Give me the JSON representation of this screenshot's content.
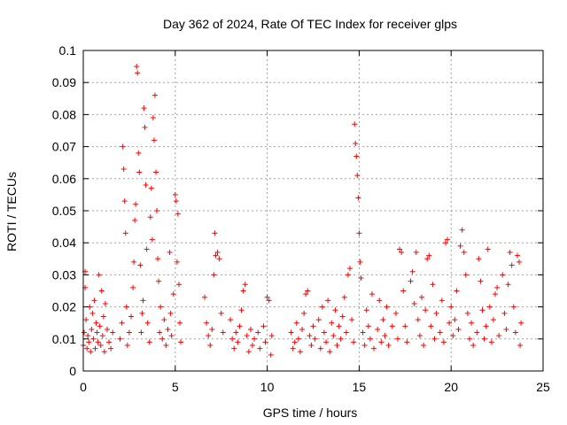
{
  "chart_data": {
    "type": "scatter",
    "title": "Day 362 of 2024, Rate Of TEC Index for receiver glps",
    "xlabel": "GPS time / hours",
    "ylabel": "ROTI / TECUs",
    "xlim": [
      0,
      25
    ],
    "ylim": [
      0,
      0.1
    ],
    "grid": true,
    "marker": "+",
    "marker_color": "#ff0000",
    "x_ticks": [
      0,
      5,
      10,
      15,
      20,
      25
    ],
    "x_tick_labels": [
      "0",
      "5",
      "10",
      "15",
      "20",
      "25"
    ],
    "y_ticks": [
      0,
      0.01,
      0.02,
      0.03,
      0.04,
      0.05,
      0.06,
      0.07,
      0.08,
      0.09,
      0.1
    ],
    "y_tick_labels": [
      "0",
      "0.01",
      "0.02",
      "0.03",
      "0.04",
      "0.05",
      "0.06",
      "0.07",
      "0.08",
      "0.09",
      "0.1"
    ],
    "series": [
      {
        "name": "ROTI",
        "points": [
          [
            0.0,
            0.008
          ],
          [
            0.05,
            0.012
          ],
          [
            0.1,
            0.031
          ],
          [
            0.1,
            0.026
          ],
          [
            0.15,
            0.016
          ],
          [
            0.2,
            0.007
          ],
          [
            0.25,
            0.011
          ],
          [
            0.3,
            0.009
          ],
          [
            0.35,
            0.02
          ],
          [
            0.4,
            0.006
          ],
          [
            0.45,
            0.013
          ],
          [
            0.5,
            0.018
          ],
          [
            0.55,
            0.01
          ],
          [
            0.6,
            0.022
          ],
          [
            0.65,
            0.007
          ],
          [
            0.7,
            0.015
          ],
          [
            0.75,
            0.012
          ],
          [
            0.8,
            0.009
          ],
          [
            0.85,
            0.03
          ],
          [
            0.9,
            0.014
          ],
          [
            0.95,
            0.008
          ],
          [
            1.0,
            0.025
          ],
          [
            1.05,
            0.011
          ],
          [
            1.1,
            0.017
          ],
          [
            1.15,
            0.006
          ],
          [
            1.2,
            0.021
          ],
          [
            1.3,
            0.013
          ],
          [
            1.4,
            0.009
          ],
          [
            1.5,
            0.007
          ],
          [
            1.6,
            0.012
          ],
          [
            2.0,
            0.01
          ],
          [
            2.1,
            0.015
          ],
          [
            2.15,
            0.07
          ],
          [
            2.2,
            0.063
          ],
          [
            2.25,
            0.053
          ],
          [
            2.3,
            0.043
          ],
          [
            2.35,
            0.02
          ],
          [
            2.4,
            0.008
          ],
          [
            2.5,
            0.012
          ],
          [
            2.6,
            0.017
          ],
          [
            2.7,
            0.026
          ],
          [
            2.75,
            0.034
          ],
          [
            2.8,
            0.047
          ],
          [
            2.85,
            0.052
          ],
          [
            2.9,
            0.095
          ],
          [
            2.95,
            0.093
          ],
          [
            3.0,
            0.068
          ],
          [
            3.05,
            0.062
          ],
          [
            3.1,
            0.033
          ],
          [
            3.15,
            0.012
          ],
          [
            3.2,
            0.018
          ],
          [
            3.25,
            0.022
          ],
          [
            3.3,
            0.082
          ],
          [
            3.35,
            0.076
          ],
          [
            3.4,
            0.058
          ],
          [
            3.45,
            0.038
          ],
          [
            3.5,
            0.015
          ],
          [
            3.6,
            0.009
          ],
          [
            3.65,
            0.048
          ],
          [
            3.7,
            0.057
          ],
          [
            3.75,
            0.041
          ],
          [
            3.8,
            0.079
          ],
          [
            3.85,
            0.072
          ],
          [
            3.9,
            0.086
          ],
          [
            3.95,
            0.062
          ],
          [
            4.0,
            0.05
          ],
          [
            4.05,
            0.035
          ],
          [
            4.1,
            0.028
          ],
          [
            4.15,
            0.012
          ],
          [
            4.2,
            0.02
          ],
          [
            4.3,
            0.01
          ],
          [
            4.4,
            0.016
          ],
          [
            4.5,
            0.008
          ],
          [
            4.6,
            0.013
          ],
          [
            4.7,
            0.037
          ],
          [
            4.75,
            0.018
          ],
          [
            4.8,
            0.011
          ],
          [
            4.9,
            0.024
          ],
          [
            5.0,
            0.055
          ],
          [
            5.05,
            0.053
          ],
          [
            5.1,
            0.034
          ],
          [
            5.15,
            0.049
          ],
          [
            5.2,
            0.027
          ],
          [
            5.25,
            0.015
          ],
          [
            5.3,
            0.009
          ],
          [
            6.6,
            0.023
          ],
          [
            6.7,
            0.015
          ],
          [
            6.8,
            0.011
          ],
          [
            6.9,
            0.008
          ],
          [
            7.0,
            0.013
          ],
          [
            7.1,
            0.03
          ],
          [
            7.15,
            0.043
          ],
          [
            7.2,
            0.036
          ],
          [
            7.3,
            0.037
          ],
          [
            7.4,
            0.035
          ],
          [
            7.5,
            0.018
          ],
          [
            7.6,
            0.012
          ],
          [
            8.0,
            0.016
          ],
          [
            8.1,
            0.01
          ],
          [
            8.2,
            0.007
          ],
          [
            8.3,
            0.012
          ],
          [
            8.4,
            0.009
          ],
          [
            8.5,
            0.014
          ],
          [
            8.6,
            0.019
          ],
          [
            8.7,
            0.025
          ],
          [
            8.8,
            0.027
          ],
          [
            8.9,
            0.011
          ],
          [
            9.0,
            0.006
          ],
          [
            9.1,
            0.013
          ],
          [
            9.2,
            0.008
          ],
          [
            9.3,
            0.01
          ],
          [
            9.5,
            0.012
          ],
          [
            9.6,
            0.007
          ],
          [
            9.8,
            0.014
          ],
          [
            9.9,
            0.009
          ],
          [
            10.0,
            0.023
          ],
          [
            10.1,
            0.022
          ],
          [
            10.2,
            0.005
          ],
          [
            10.25,
            0.011
          ],
          [
            11.3,
            0.012
          ],
          [
            11.4,
            0.007
          ],
          [
            11.5,
            0.009
          ],
          [
            11.6,
            0.015
          ],
          [
            11.7,
            0.01
          ],
          [
            11.8,
            0.006
          ],
          [
            11.9,
            0.013
          ],
          [
            12.0,
            0.018
          ],
          [
            12.1,
            0.024
          ],
          [
            12.2,
            0.025
          ],
          [
            12.3,
            0.011
          ],
          [
            12.4,
            0.008
          ],
          [
            12.5,
            0.014
          ],
          [
            12.6,
            0.01
          ],
          [
            12.8,
            0.016
          ],
          [
            12.9,
            0.007
          ],
          [
            13.0,
            0.02
          ],
          [
            13.1,
            0.012
          ],
          [
            13.2,
            0.009
          ],
          [
            13.3,
            0.022
          ],
          [
            13.4,
            0.006
          ],
          [
            13.5,
            0.015
          ],
          [
            13.6,
            0.011
          ],
          [
            13.7,
            0.019
          ],
          [
            13.8,
            0.008
          ],
          [
            13.9,
            0.014
          ],
          [
            14.0,
            0.01
          ],
          [
            14.1,
            0.017
          ],
          [
            14.2,
            0.023
          ],
          [
            14.3,
            0.012
          ],
          [
            14.4,
            0.03
          ],
          [
            14.5,
            0.032
          ],
          [
            14.6,
            0.016
          ],
          [
            14.7,
            0.009
          ],
          [
            14.75,
            0.077
          ],
          [
            14.8,
            0.071
          ],
          [
            14.85,
            0.067
          ],
          [
            14.9,
            0.061
          ],
          [
            14.95,
            0.054
          ],
          [
            15.0,
            0.043
          ],
          [
            15.05,
            0.034
          ],
          [
            15.1,
            0.029
          ],
          [
            15.2,
            0.012
          ],
          [
            15.3,
            0.008
          ],
          [
            15.4,
            0.019
          ],
          [
            15.5,
            0.014
          ],
          [
            15.6,
            0.01
          ],
          [
            15.7,
            0.024
          ],
          [
            15.8,
            0.007
          ],
          [
            16.0,
            0.013
          ],
          [
            16.1,
            0.022
          ],
          [
            16.2,
            0.009
          ],
          [
            16.3,
            0.016
          ],
          [
            16.4,
            0.011
          ],
          [
            16.5,
            0.02
          ],
          [
            16.6,
            0.008
          ],
          [
            16.8,
            0.014
          ],
          [
            17.0,
            0.018
          ],
          [
            17.1,
            0.01
          ],
          [
            17.2,
            0.038
          ],
          [
            17.3,
            0.037
          ],
          [
            17.4,
            0.025
          ],
          [
            17.5,
            0.014
          ],
          [
            17.6,
            0.009
          ],
          [
            17.8,
            0.028
          ],
          [
            17.9,
            0.031
          ],
          [
            18.0,
            0.021
          ],
          [
            18.1,
            0.037
          ],
          [
            18.2,
            0.016
          ],
          [
            18.3,
            0.011
          ],
          [
            18.4,
            0.023
          ],
          [
            18.5,
            0.008
          ],
          [
            18.6,
            0.019
          ],
          [
            18.7,
            0.035
          ],
          [
            18.8,
            0.036
          ],
          [
            18.9,
            0.014
          ],
          [
            19.0,
            0.027
          ],
          [
            19.1,
            0.01
          ],
          [
            19.2,
            0.018
          ],
          [
            19.4,
            0.012
          ],
          [
            19.5,
            0.022
          ],
          [
            19.6,
            0.009
          ],
          [
            19.7,
            0.04
          ],
          [
            19.8,
            0.041
          ],
          [
            19.9,
            0.015
          ],
          [
            20.0,
            0.02
          ],
          [
            20.1,
            0.011
          ],
          [
            20.2,
            0.016
          ],
          [
            20.3,
            0.025
          ],
          [
            20.4,
            0.013
          ],
          [
            20.5,
            0.039
          ],
          [
            20.6,
            0.044
          ],
          [
            20.7,
            0.037
          ],
          [
            20.8,
            0.03
          ],
          [
            20.9,
            0.018
          ],
          [
            21.0,
            0.01
          ],
          [
            21.1,
            0.015
          ],
          [
            21.2,
            0.008
          ],
          [
            21.4,
            0.012
          ],
          [
            21.5,
            0.035
          ],
          [
            21.6,
            0.028
          ],
          [
            21.7,
            0.019
          ],
          [
            21.8,
            0.01
          ],
          [
            21.9,
            0.014
          ],
          [
            22.0,
            0.038
          ],
          [
            22.1,
            0.02
          ],
          [
            22.2,
            0.009
          ],
          [
            22.3,
            0.016
          ],
          [
            22.4,
            0.024
          ],
          [
            22.5,
            0.026
          ],
          [
            22.6,
            0.011
          ],
          [
            22.8,
            0.03
          ],
          [
            22.9,
            0.018
          ],
          [
            23.0,
            0.013
          ],
          [
            23.1,
            0.027
          ],
          [
            23.2,
            0.037
          ],
          [
            23.3,
            0.033
          ],
          [
            23.4,
            0.02
          ],
          [
            23.5,
            0.012
          ],
          [
            23.6,
            0.036
          ],
          [
            23.7,
            0.034
          ],
          [
            23.75,
            0.008
          ],
          [
            23.8,
            0.015
          ]
        ]
      }
    ]
  }
}
